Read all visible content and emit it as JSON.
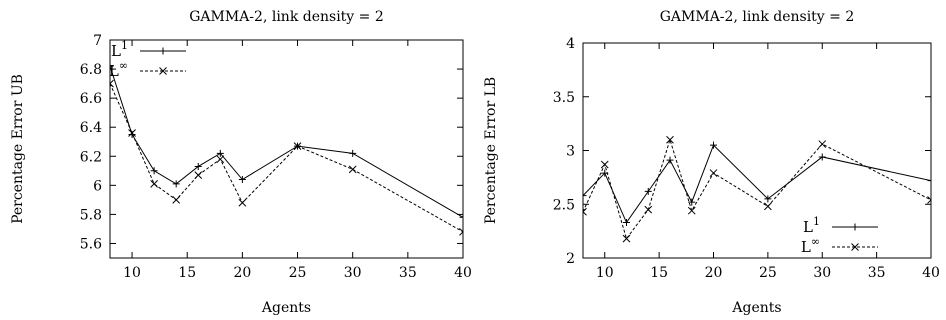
{
  "chart_data": [
    {
      "type": "line",
      "title": "GAMMA-2, link density = 2",
      "xlabel": "Agents",
      "ylabel": "Percentage Error UB",
      "xlim": [
        8,
        40
      ],
      "ylim": [
        5.5,
        7
      ],
      "x_ticks": [
        "10",
        "15",
        "20",
        "25",
        "30",
        "35",
        "40"
      ],
      "y_ticks": [
        "5.6",
        "5.8",
        "6",
        "6.2",
        "6.4",
        "6.6",
        "6.8",
        "7"
      ],
      "legend_position": "top-left",
      "grid": false,
      "x": [
        8,
        10,
        12,
        14,
        16,
        18,
        20,
        25,
        30,
        40
      ],
      "series": [
        {
          "name": "L1",
          "label_base": "L",
          "label_sup": "1",
          "marker": "+",
          "line_style": "solid",
          "values": [
            6.82,
            6.35,
            6.1,
            6.01,
            6.13,
            6.22,
            6.04,
            6.27,
            6.22,
            5.78
          ]
        },
        {
          "name": "L∞",
          "label_base": "L",
          "label_sup": "∞",
          "marker": "x",
          "line_style": "dashed",
          "values": [
            6.7,
            6.36,
            6.01,
            5.9,
            6.07,
            6.18,
            5.88,
            6.27,
            6.11,
            5.68
          ]
        }
      ]
    },
    {
      "type": "line",
      "title": "GAMMA-2, link density = 2",
      "xlabel": "Agents",
      "ylabel": "Percentage Error LB",
      "xlim": [
        8,
        40
      ],
      "ylim": [
        2,
        4
      ],
      "x_ticks": [
        "10",
        "15",
        "20",
        "25",
        "30",
        "35",
        "40"
      ],
      "y_ticks": [
        "2",
        "2.5",
        "3",
        "3.5",
        "4"
      ],
      "legend_position": "bottom-right",
      "grid": false,
      "x": [
        8,
        10,
        12,
        14,
        16,
        18,
        20,
        25,
        30,
        40
      ],
      "series": [
        {
          "name": "L1",
          "label_base": "L",
          "label_sup": "1",
          "marker": "+",
          "line_style": "solid",
          "values": [
            2.58,
            2.79,
            2.33,
            2.62,
            2.91,
            2.52,
            3.05,
            2.55,
            2.94,
            2.72
          ]
        },
        {
          "name": "L∞",
          "label_base": "L",
          "label_sup": "∞",
          "marker": "x",
          "line_style": "dashed",
          "values": [
            2.43,
            2.87,
            2.18,
            2.45,
            3.1,
            2.44,
            2.79,
            2.48,
            3.06,
            2.54
          ]
        }
      ]
    }
  ]
}
